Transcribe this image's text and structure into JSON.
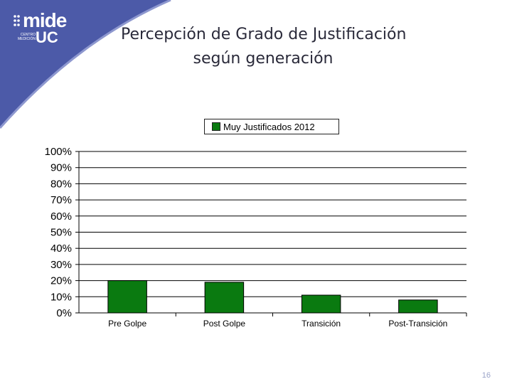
{
  "logo": {
    "text_mide": "mide",
    "text_uc": "UC",
    "text_sub": "CENTRO MEDICIÓN"
  },
  "title_line1": "Percepción de Grado de Justificación",
  "title_line2": "según generación",
  "page_number": "16",
  "colors": {
    "bar": "#0a7a10",
    "decor": "#4c5aa8",
    "title": "#2a2a3a"
  },
  "chart_data": {
    "type": "bar",
    "categories": [
      "Pre Golpe",
      "Post Golpe",
      "Transición",
      "Post-Transición"
    ],
    "series": [
      {
        "name": "Muy Justificados 2012",
        "values": [
          20,
          19,
          11,
          8
        ]
      }
    ],
    "ylim": [
      0,
      100
    ],
    "yticks": [
      "0%",
      "10%",
      "20%",
      "30%",
      "40%",
      "50%",
      "60%",
      "70%",
      "80%",
      "90%",
      "100%"
    ],
    "grid": true,
    "legend_position": "top-center"
  }
}
